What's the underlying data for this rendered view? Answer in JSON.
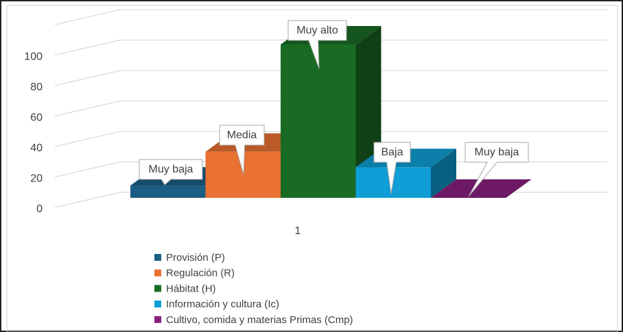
{
  "chart_data": {
    "type": "bar3d",
    "categories": [
      "1"
    ],
    "series": [
      {
        "name": "Provisión (P)",
        "color": "#1b5e84",
        "values": [
          8
        ],
        "value_labels": [
          "Muy baja"
        ]
      },
      {
        "name": "Regulación (R)",
        "color": "#e97132",
        "values": [
          30
        ],
        "value_labels": [
          "Media"
        ]
      },
      {
        "name": "Hábitat (H)",
        "color": "#196b24",
        "values": [
          100
        ],
        "value_labels": [
          "Muy alto"
        ]
      },
      {
        "name": "Información y cultura (Ic)",
        "color": "#0f9ed5",
        "values": [
          20
        ],
        "value_labels": [
          "Baja"
        ]
      },
      {
        "name": "Cultivo, comida y materias Primas (Cmp)",
        "color": "#8a1f7e",
        "values": [
          0
        ],
        "value_labels": [
          "Muy baja"
        ]
      }
    ],
    "ylim": [
      0,
      120
    ],
    "yticks": [
      0,
      20,
      40,
      60,
      80,
      100
    ],
    "grid": true,
    "legend": "bottom"
  }
}
